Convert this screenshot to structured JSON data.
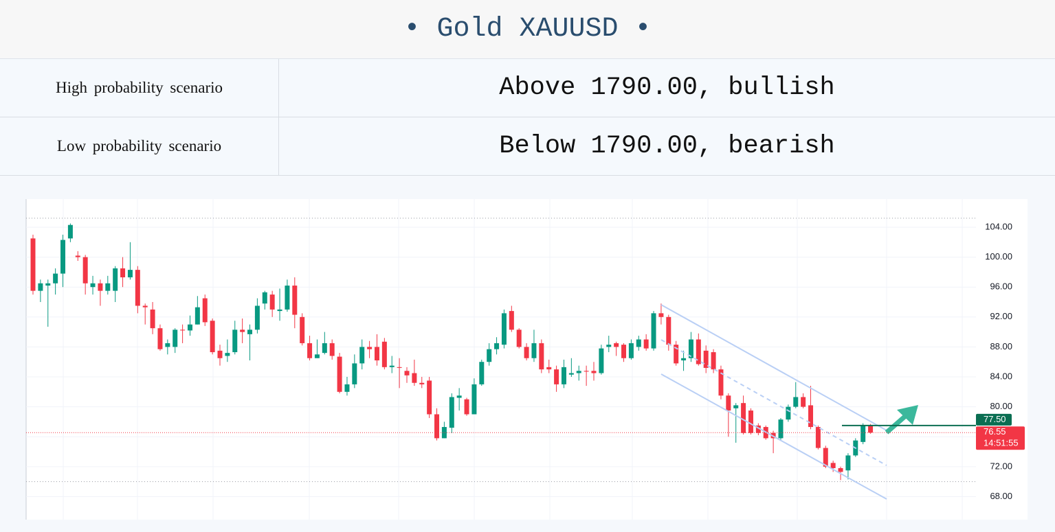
{
  "header": {
    "title": "Gold XAUUSD"
  },
  "table": {
    "rows": [
      [
        "High probability scenario",
        "Above 1790.00, bullish"
      ],
      [
        "Low probability scenario",
        "Below 1790.00, bearish"
      ]
    ]
  },
  "chart_data": {
    "type": "candlestick",
    "ylim": [
      64.92,
      107.76
    ],
    "yticks": [
      {
        "value": 68,
        "label": "68.00"
      },
      {
        "value": 72,
        "label": "72.00"
      },
      {
        "value": 76,
        "label": "76.00"
      },
      {
        "value": 80,
        "label": "80.00"
      },
      {
        "value": 84,
        "label": "84.00"
      },
      {
        "value": 88,
        "label": "88.00"
      },
      {
        "value": 92,
        "label": "92.00"
      },
      {
        "value": 96,
        "label": "96.00"
      },
      {
        "value": 100,
        "label": "100.00"
      },
      {
        "value": 104,
        "label": "104.00"
      }
    ],
    "grid": true,
    "up_color": "#089981",
    "down_color": "#f23645",
    "open": [
      102.5,
      95.5,
      96.2,
      96.5,
      97.8,
      102.5,
      100.2,
      100,
      96,
      96.5,
      95.5,
      95.5,
      98.5,
      97.3,
      98.3,
      93.5,
      93,
      90.5,
      88,
      88,
      90.3,
      90.2,
      91,
      94.5,
      91.5,
      87.5,
      86.8,
      87.3,
      90.3,
      89.7,
      90.3,
      93.8,
      95,
      92.8,
      93,
      96.2,
      92,
      88.5,
      86.5,
      87.2,
      88.5,
      86.7,
      82,
      83,
      85.8,
      88,
      88,
      88.7,
      85.3,
      85.3,
      84.8,
      84.5,
      83.2,
      83.5,
      79,
      75.8,
      77.2,
      81.2,
      81,
      79,
      83,
      86,
      87.7,
      88.3,
      92.8,
      90.3,
      88,
      86.5,
      88.5,
      85.3,
      85,
      83,
      84.3,
      84.5,
      84.8,
      84.8,
      84.5,
      88,
      88.5,
      88.3,
      86.5,
      88,
      89,
      87.8,
      92.5,
      92,
      88.3,
      86.2,
      86.5,
      89,
      87.5,
      87.3,
      85,
      81.5,
      79.8,
      80.5,
      79.5,
      77.5,
      77.3,
      76.5,
      75.8,
      78.3,
      80,
      81.3,
      80.2,
      77.3,
      74.5,
      72.5,
      71.8,
      71.5,
      73.5,
      75.3,
      77.5
    ],
    "high": [
      103,
      97,
      97,
      98.5,
      103,
      104.5,
      100.8,
      100.3,
      97.5,
      97,
      97.5,
      98.8,
      100,
      102,
      98.8,
      93.8,
      94,
      91,
      89,
      90.5,
      91,
      92.2,
      94.8,
      95,
      91.8,
      88.3,
      89,
      91.5,
      91.8,
      91,
      94.5,
      95.5,
      95.5,
      95.8,
      97,
      97.3,
      92.5,
      89.5,
      89,
      90,
      89,
      87.2,
      84,
      87,
      89,
      88.8,
      89.7,
      89.2,
      86.8,
      86.5,
      85.3,
      86.3,
      84,
      84,
      79.8,
      78,
      81.8,
      82.5,
      81.2,
      83.8,
      86.3,
      88.5,
      89.3,
      93,
      93.5,
      90.5,
      88.5,
      90.3,
      89,
      86.3,
      85.5,
      86.3,
      86.5,
      85.5,
      85.5,
      86,
      88.3,
      89.5,
      88.7,
      88.5,
      89,
      89.5,
      89.7,
      92.8,
      93.8,
      92.3,
      88.8,
      87.5,
      90,
      89.8,
      88.2,
      87.7,
      85.5,
      81.8,
      80.5,
      81.5,
      79.8,
      77.8,
      77.5,
      76.8,
      78.5,
      80.3,
      83.3,
      81.8,
      82.8,
      77.5,
      74.8,
      72.8,
      72,
      73.8,
      75.8,
      77.8,
      77.7
    ],
    "low": [
      95,
      94,
      90.7,
      95,
      96,
      102,
      99.5,
      95,
      95,
      93.5,
      95,
      94,
      96,
      97,
      92.5,
      91,
      89.7,
      87.5,
      87,
      87.2,
      88.5,
      89.5,
      91,
      90.8,
      87,
      85.5,
      86,
      87,
      88.5,
      86.2,
      89.8,
      93,
      92,
      91.5,
      92.7,
      90.5,
      88.2,
      86.2,
      86.5,
      87,
      86.3,
      81.8,
      81.5,
      82.5,
      85,
      86.5,
      85.5,
      85,
      84.5,
      82.5,
      83.2,
      82.8,
      82.5,
      78.5,
      75.5,
      75.8,
      76.5,
      79.5,
      78.8,
      79,
      82.8,
      85.5,
      87,
      87.8,
      90,
      87.8,
      86.2,
      86,
      84.5,
      84.5,
      82,
      82.5,
      84,
      83.5,
      82.8,
      83.5,
      84.3,
      87.3,
      86.8,
      86,
      86.3,
      87.5,
      87.5,
      87.5,
      91,
      87.5,
      85.5,
      84.8,
      86,
      85.5,
      84.5,
      84.5,
      81,
      76,
      75.2,
      76.3,
      76.3,
      76.2,
      75.6,
      73.8,
      75.6,
      78,
      79.8,
      79.8,
      77,
      74.3,
      71.8,
      71.3,
      70.2,
      70.3,
      73.3,
      75,
      76.4
    ],
    "close": [
      95.5,
      96.5,
      96.5,
      97.8,
      102.3,
      104.3,
      100,
      96.5,
      96.5,
      95.5,
      96.5,
      98.5,
      97.3,
      98.3,
      93.5,
      93.3,
      90.5,
      87.7,
      88.5,
      90.3,
      90.2,
      91,
      93.3,
      91.3,
      87.3,
      86.5,
      87.2,
      90.3,
      90,
      90.3,
      93.5,
      95.3,
      93,
      93,
      96.2,
      92.3,
      88.5,
      86.5,
      87,
      88.5,
      86.8,
      82,
      83,
      85.8,
      88,
      87.7,
      86.2,
      85.3,
      85.5,
      85.2,
      84.2,
      83.2,
      83,
      79,
      75.8,
      77.3,
      81.3,
      81.5,
      79,
      83,
      86,
      87.7,
      88.5,
      92.5,
      90.3,
      88,
      86.5,
      88.5,
      85,
      85,
      83,
      85.3,
      84.5,
      84.8,
      84.7,
      84.5,
      87.8,
      88.3,
      88,
      86.5,
      88.5,
      89,
      87.8,
      92.5,
      92,
      88.3,
      85.8,
      86.5,
      89,
      85.7,
      85.2,
      85,
      81.5,
      79.5,
      80.2,
      76.5,
      76.5,
      76.5,
      75.8,
      75.8,
      78.3,
      80,
      81.3,
      80,
      77.3,
      74.5,
      72,
      71.8,
      71.3,
      73.5,
      75.5,
      77.5,
      76.55
    ],
    "reference_lines": [
      105.2,
      70
    ],
    "price_markers": [
      {
        "value": 77.5,
        "label": "77.50",
        "color": "#0b6e52"
      },
      {
        "value": 76.55,
        "label": "76.55",
        "sublabel": "14:51:55",
        "color": "#f23645"
      }
    ]
  }
}
